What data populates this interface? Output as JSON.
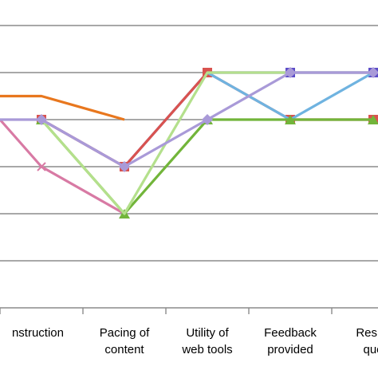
{
  "chart_data": {
    "type": "line",
    "categories": [
      [
        "nstruction"
      ],
      [
        "Pacing of",
        "content"
      ],
      [
        "Utility of",
        "web tools"
      ],
      [
        "Feedback",
        "provided"
      ],
      [
        "Respo",
        "que"
      ]
    ],
    "ylim": [
      0,
      6
    ],
    "grid": true,
    "series": [
      {
        "color": "#e8771e",
        "marker": "none",
        "values": [
          4.5,
          4,
          null,
          null,
          null
        ],
        "lead": 4.5
      },
      {
        "color": "#d87aa4",
        "marker": "cross",
        "values": [
          3,
          2,
          null,
          null,
          null
        ],
        "lead": 4.0
      },
      {
        "color": "#5c4dc8",
        "marker": "square",
        "values": [
          4,
          3,
          5,
          5,
          5
        ]
      },
      {
        "color": "#d9534f",
        "marker": "square",
        "values": [
          4,
          3,
          5,
          4,
          4
        ]
      },
      {
        "color": "#6fb3e0",
        "marker": "none",
        "values": [
          null,
          null,
          5,
          4,
          5
        ]
      },
      {
        "color": "#72b53a",
        "marker": "triangle",
        "values": [
          4,
          2,
          4,
          4,
          4
        ]
      },
      {
        "color": "#b4e08c",
        "marker": "none",
        "values": [
          4,
          2,
          5,
          5,
          5
        ]
      },
      {
        "color": "#a99ad8",
        "marker": "diamond",
        "values": [
          4,
          3,
          4,
          5,
          5
        ],
        "lead": 4.0
      }
    ]
  }
}
